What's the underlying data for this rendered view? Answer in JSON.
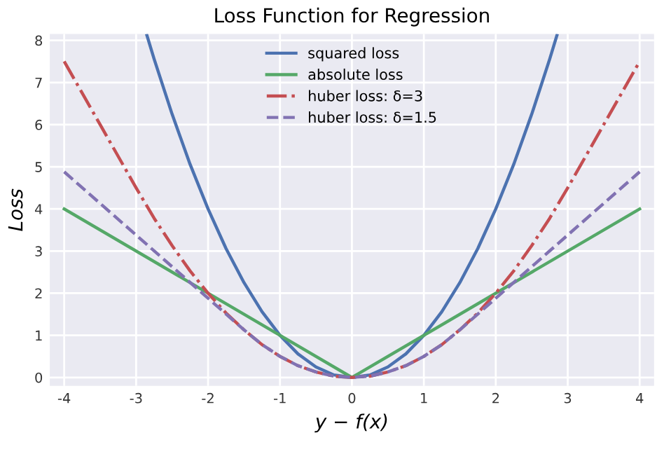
{
  "chart_data": {
    "type": "line",
    "title": "Loss Function for Regression",
    "xlabel": "y − f(x)",
    "ylabel": "Loss",
    "xlim": [
      -4.2,
      4.2
    ],
    "ylim": [
      -0.2,
      8.15
    ],
    "xticks": [
      -4,
      -3,
      -2,
      -1,
      0,
      1,
      2,
      3,
      4
    ],
    "yticks": [
      0,
      1,
      2,
      3,
      4,
      5,
      6,
      7,
      8
    ],
    "grid": true,
    "legend": "top",
    "marker": "none",
    "series": [
      {
        "name": "squared loss",
        "color": "#4c72b0",
        "line_style": "solid",
        "x": [
          -2.85,
          -2.75,
          -2.5,
          -2.25,
          -2,
          -1.75,
          -1.5,
          -1.25,
          -1,
          -0.75,
          -0.5,
          -0.25,
          0,
          0.25,
          0.5,
          0.75,
          1,
          1.25,
          1.5,
          1.75,
          2,
          2.25,
          2.5,
          2.75,
          2.85
        ],
        "values": [
          8.12,
          7.56,
          6.25,
          5.06,
          4,
          3.06,
          2.25,
          1.56,
          1,
          0.56,
          0.25,
          0.06,
          0,
          0.06,
          0.25,
          0.56,
          1,
          1.56,
          2.25,
          3.06,
          4,
          5.06,
          6.25,
          7.56,
          8.12
        ]
      },
      {
        "name": "absolute loss",
        "color": "#55a868",
        "line_style": "solid",
        "x": [
          -4,
          0,
          4
        ],
        "values": [
          4,
          0,
          4
        ]
      },
      {
        "name": "huber loss: δ=3",
        "color": "#c44e52",
        "line_style": "dashdot",
        "x": [
          -4,
          -3.5,
          -3,
          -2.75,
          -2.5,
          -2.25,
          -2,
          -1.75,
          -1.5,
          -1.25,
          -1,
          -0.75,
          -0.5,
          -0.25,
          0,
          0.25,
          0.5,
          0.75,
          1,
          1.25,
          1.5,
          1.75,
          2,
          2.25,
          2.5,
          2.75,
          3,
          3.5,
          4
        ],
        "values": [
          7.5,
          6,
          4.5,
          3.78,
          3.13,
          2.53,
          2,
          1.53,
          1.13,
          0.78,
          0.5,
          0.28,
          0.13,
          0.03,
          0,
          0.03,
          0.13,
          0.28,
          0.5,
          0.78,
          1.13,
          1.53,
          2,
          2.53,
          3.13,
          3.78,
          4.5,
          6,
          7.5
        ]
      },
      {
        "name": "huber loss: δ=1.5",
        "color": "#8172b2",
        "line_style": "dashed",
        "x": [
          -4,
          -3,
          -2,
          -1.5,
          -1.25,
          -1,
          -0.75,
          -0.5,
          -0.25,
          0,
          0.25,
          0.5,
          0.75,
          1,
          1.25,
          1.5,
          2,
          3,
          4
        ],
        "values": [
          4.88,
          3.38,
          1.88,
          1.13,
          0.78,
          0.5,
          0.28,
          0.13,
          0.03,
          0,
          0.03,
          0.13,
          0.28,
          0.5,
          0.78,
          1.13,
          1.88,
          3.38,
          4.88
        ]
      }
    ]
  }
}
